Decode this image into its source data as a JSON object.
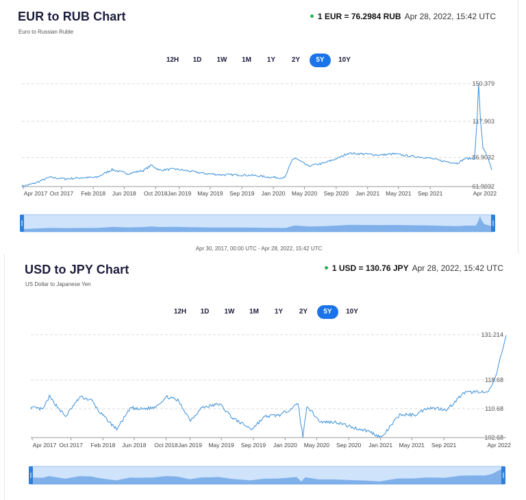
{
  "charts": [
    {
      "title": "EUR to RUB Chart",
      "subtitle": "Euro to Russian Ruble",
      "rate_label": "1 EUR = 76.2984 RUB",
      "timestamp": "Apr 28, 2022, 15:42 UTC",
      "periods": [
        "12H",
        "1D",
        "1W",
        "1M",
        "1Y",
        "2Y",
        "5Y",
        "10Y"
      ],
      "active_period": "5Y",
      "range_label": "Apr 30, 2017, 00:00 UTC - Apr 28, 2022, 15:42 UTC",
      "colors": {
        "line": "#3a8fd8",
        "active": "#1a73e8"
      }
    },
    {
      "title": "USD to JPY Chart",
      "subtitle": "US Dollar to Japanese Yen",
      "rate_label": "1 USD = 130.76 JPY",
      "timestamp": "Apr 28, 2022, 15:42 UTC",
      "periods": [
        "12H",
        "1D",
        "1W",
        "1M",
        "1Y",
        "2Y",
        "5Y",
        "10Y"
      ],
      "active_period": "5Y",
      "range_label": "",
      "colors": {
        "line": "#3a8fd8",
        "active": "#1a73e8"
      }
    }
  ],
  "chart_data": [
    {
      "type": "line",
      "title": "EUR to RUB Chart",
      "xlabel": "",
      "ylabel": "",
      "x_ticks": [
        "Apr 2017",
        "Oct 2017",
        "Feb 2018",
        "Jun 2018",
        "Oct 2018",
        "Jan 2019",
        "May 2019",
        "Sep 2019",
        "Jan 2020",
        "May 2020",
        "Sep 2020",
        "Jan 2021",
        "May 2021",
        "Sep 2021",
        "Apr 2022"
      ],
      "y_ticks": [
        "150.379",
        "117.903",
        "86.9032",
        "61.9032"
      ],
      "y_tick_values": [
        150.379,
        117.903,
        86.9032,
        61.9032
      ],
      "ylim": [
        61.9032,
        150.379
      ],
      "grid": true,
      "series": [
        {
          "x": [
            "2017-04-30",
            "2017-06-15",
            "2017-08-15",
            "2017-10-15",
            "2017-12-15",
            "2018-02-15",
            "2018-04-01",
            "2018-04-15",
            "2018-06-15",
            "2018-08-15",
            "2018-09-15",
            "2018-10-15",
            "2018-12-15",
            "2019-02-15",
            "2019-04-15",
            "2019-06-15",
            "2019-08-15",
            "2019-10-15",
            "2019-12-15",
            "2020-02-15",
            "2020-03-15",
            "2020-03-25",
            "2020-05-15",
            "2020-07-15",
            "2020-09-15",
            "2020-10-15",
            "2020-12-15",
            "2021-02-15",
            "2021-04-15",
            "2021-06-15",
            "2021-08-15",
            "2021-10-15",
            "2021-12-15",
            "2022-01-15",
            "2022-02-20",
            "2022-03-01",
            "2022-03-08",
            "2022-03-15",
            "2022-03-25",
            "2022-04-10",
            "2022-04-28"
          ],
          "values": [
            62.0,
            64.5,
            69.8,
            68.5,
            69.5,
            69.8,
            75.0,
            76.5,
            73.0,
            75.8,
            80.3,
            76.0,
            77.0,
            75.0,
            73.0,
            72.0,
            72.0,
            71.5,
            70.0,
            69.5,
            85.0,
            86.5,
            79.5,
            82.0,
            87.0,
            90.5,
            90.0,
            89.0,
            90.0,
            88.0,
            87.0,
            84.0,
            82.0,
            86.0,
            86.0,
            115.0,
            150.379,
            120.0,
            95.0,
            88.0,
            76.3
          ]
        }
      ]
    },
    {
      "type": "line",
      "title": "USD to JPY Chart",
      "xlabel": "",
      "ylabel": "",
      "x_ticks": [
        "Apr 2017",
        "Oct 2017",
        "Feb 2018",
        "Jun 2018",
        "Oct 2018",
        "Jan 2019",
        "May 2019",
        "Sep 2019",
        "Jan 2020",
        "May 2020",
        "Sep 2020",
        "Jan 2021",
        "May 2021",
        "Sep 2021",
        "Apr 2022"
      ],
      "y_ticks": [
        "131.214",
        "118.68",
        "110.68",
        "102.68"
      ],
      "y_tick_values": [
        131.214,
        118.68,
        110.68,
        102.68
      ],
      "ylim": [
        102.68,
        131.214
      ],
      "grid": true,
      "series": [
        {
          "x": [
            "2017-04-30",
            "2017-06-15",
            "2017-07-10",
            "2017-09-10",
            "2017-11-05",
            "2017-12-20",
            "2018-01-15",
            "2018-03-25",
            "2018-05-20",
            "2018-06-15",
            "2018-08-15",
            "2018-10-05",
            "2018-11-15",
            "2019-01-03",
            "2019-02-15",
            "2019-04-25",
            "2019-06-15",
            "2019-08-25",
            "2019-10-15",
            "2019-12-15",
            "2020-02-20",
            "2020-03-09",
            "2020-03-24",
            "2020-05-15",
            "2020-07-15",
            "2020-09-15",
            "2020-11-15",
            "2021-01-05",
            "2021-03-15",
            "2021-05-15",
            "2021-07-01",
            "2021-09-15",
            "2021-11-15",
            "2022-01-15",
            "2022-02-15",
            "2022-03-15",
            "2022-04-28"
          ],
          "values": [
            111.0,
            110.5,
            114.0,
            108.5,
            114.0,
            113.0,
            110.0,
            105.0,
            111.0,
            110.5,
            111.0,
            114.0,
            113.0,
            107.5,
            111.0,
            112.0,
            108.0,
            105.0,
            108.5,
            109.0,
            112.0,
            102.7,
            111.5,
            107.0,
            107.0,
            105.5,
            104.5,
            102.7,
            109.0,
            109.0,
            111.0,
            110.5,
            115.0,
            115.5,
            115.0,
            118.5,
            131.0
          ]
        }
      ]
    }
  ]
}
